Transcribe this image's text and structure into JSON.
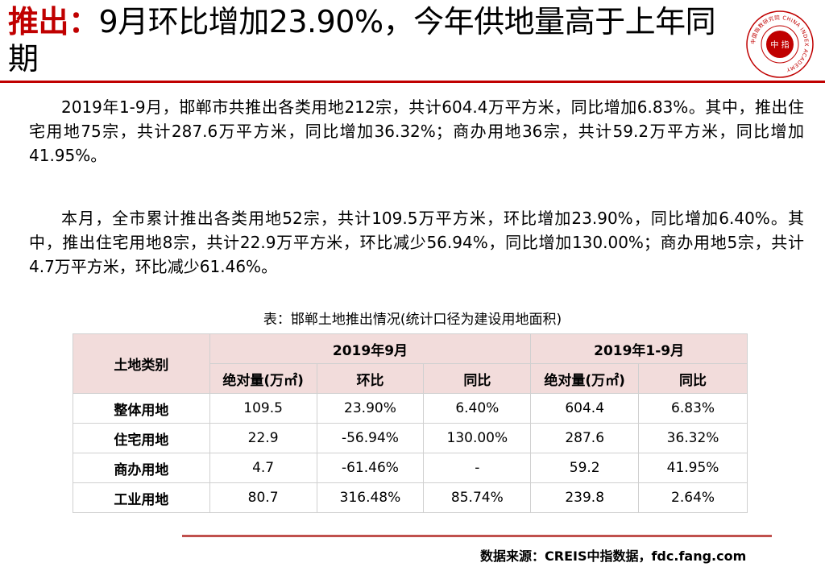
{
  "title": {
    "prefix": "推出：",
    "text": "9月环比增加23.90%，今年供地量高于上年同期"
  },
  "logo": {
    "name": "china-index-academy-seal",
    "center_text": "中 指",
    "ring_text": "中国指数研究院 CHINA INDEX ACADEMY"
  },
  "paragraphs": [
    "2019年1-9月，邯郸市共推出各类用地212宗，共计604.4万平方米，同比增加6.83%。其中，推出住宅用地75宗，共计287.6万平方米，同比增加36.32%；商办用地36宗，共计59.2万平方米，同比增加41.95%。",
    "本月，全市累计推出各类用地52宗，共计109.5万平方米，环比增加23.90%，同比增加6.40%。其中，推出住宅用地8宗，共计22.9万平方米，环比减少56.94%，同比增加130.00%；商办用地5宗，共计4.7万平方米，环比减少61.46%。"
  ],
  "table": {
    "caption": "表：邯郸土地推出情况(统计口径为建设用地面积)",
    "corner_header": "土地类别",
    "group_headers": [
      "2019年9月",
      "2019年1-9月"
    ],
    "sub_headers": [
      "绝对量(万㎡)",
      "环比",
      "同比",
      "绝对量(万㎡)",
      "同比"
    ],
    "rows": [
      [
        "整体用地",
        "109.5",
        "23.90%",
        "6.40%",
        "604.4",
        "6.83%"
      ],
      [
        "住宅用地",
        "22.9",
        "-56.94%",
        "130.00%",
        "287.6",
        "36.32%"
      ],
      [
        "商办用地",
        "4.7",
        "-61.46%",
        "-",
        "59.2",
        "41.95%"
      ],
      [
        "工业用地",
        "80.7",
        "316.48%",
        "85.74%",
        "239.8",
        "2.64%"
      ]
    ]
  },
  "source": "数据来源：CREIS中指数据，fdc.fang.com",
  "colors": {
    "accent_red": "#c00000",
    "table_header_bg": "#f2dcdb",
    "bottom_rule": "#c0504d"
  }
}
